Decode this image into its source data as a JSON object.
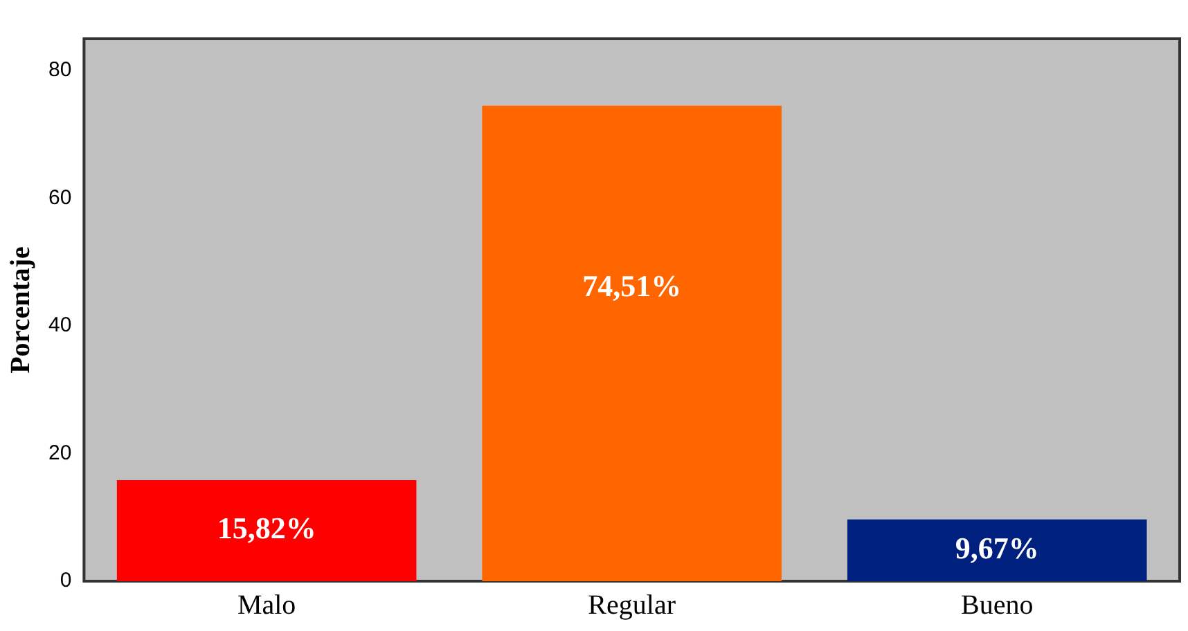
{
  "chart_data": {
    "type": "bar",
    "ylabel": "Porcentaje",
    "categories": [
      "Malo",
      "Regular",
      "Bueno"
    ],
    "values": [
      15.82,
      74.51,
      9.67
    ],
    "colors": [
      "#ff0000",
      "#ff6600",
      "#002080"
    ],
    "value_labels": [
      "15,82%",
      "74,51%",
      "9,67%"
    ],
    "ylim": [
      0,
      85
    ],
    "yticks": [
      0,
      20,
      40,
      60,
      80
    ],
    "grid": false,
    "legend": false
  }
}
